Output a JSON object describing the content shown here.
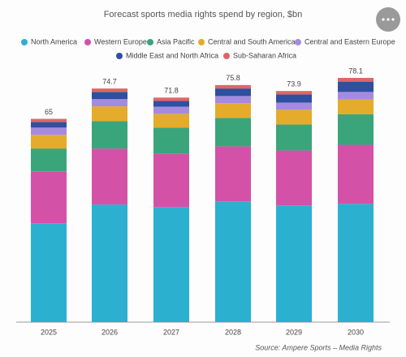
{
  "chart_data": {
    "type": "stacked-bar",
    "title": "Forecast sports media rights spend by region, $bn",
    "source": "Source:  Ampere Sports – Media Rights",
    "categories": [
      "2025",
      "2026",
      "2027",
      "2028",
      "2029",
      "2030"
    ],
    "totals": [
      65,
      74.7,
      71.8,
      75.8,
      73.9,
      78.1
    ],
    "series": [
      {
        "name": "North America",
        "color": "#2bb0d0",
        "values": [
          31.6,
          37.6,
          36.8,
          38.6,
          37.3,
          37.8
        ]
      },
      {
        "name": "Western Europe",
        "color": "#d352a8",
        "values": [
          16.6,
          17.9,
          17.1,
          17.6,
          17.6,
          18.9
        ]
      },
      {
        "name": "Asia Pacific",
        "color": "#3aa57a",
        "values": [
          7.3,
          8.8,
          8.3,
          9.1,
          8.3,
          9.8
        ]
      },
      {
        "name": "Central and South America",
        "color": "#e5ab2b",
        "values": [
          4.4,
          4.7,
          4.4,
          4.7,
          4.7,
          4.7
        ]
      },
      {
        "name": "Central and Eastern Europe",
        "color": "#a58be0",
        "values": [
          2.3,
          2.3,
          2.3,
          2.3,
          2.3,
          2.4
        ]
      },
      {
        "name": "Middle East and North Africa",
        "color": "#2f4f9f",
        "values": [
          1.8,
          2.3,
          1.8,
          2.4,
          2.6,
          3.3
        ]
      },
      {
        "name": "Sub-Saharan Africa",
        "color": "#e06666",
        "values": [
          1.0,
          1.1,
          1.1,
          1.1,
          1.1,
          1.2
        ]
      }
    ]
  }
}
